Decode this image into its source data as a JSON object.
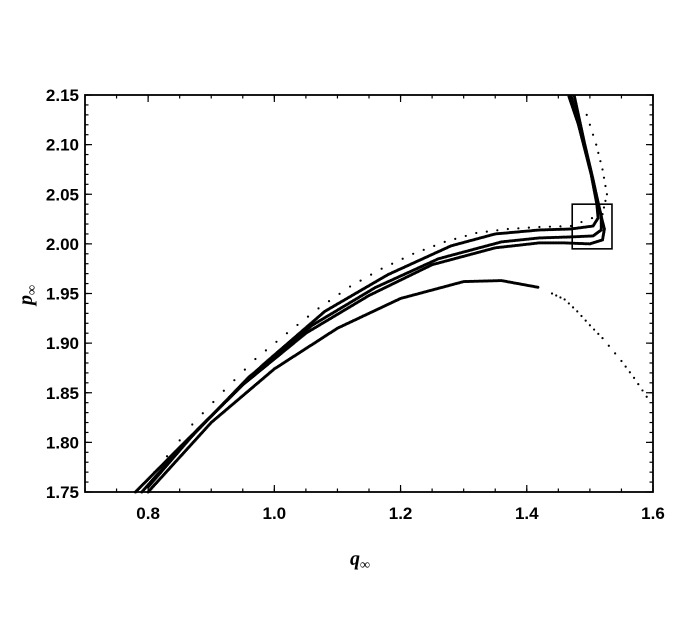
{
  "chart_data": {
    "type": "scatter",
    "title": "",
    "xlabel": {
      "symbol": "q",
      "subscript": "∞"
    },
    "ylabel": {
      "symbol": "p",
      "subscript": "∞"
    },
    "xlim": [
      0.7,
      1.6
    ],
    "ylim": [
      1.75,
      2.15
    ],
    "x_ticks": [
      {
        "value": 0.8,
        "label": "0.8"
      },
      {
        "value": 1.0,
        "label": "1.0"
      },
      {
        "value": 1.2,
        "label": "1.2"
      },
      {
        "value": 1.4,
        "label": "1.4"
      },
      {
        "value": 1.6,
        "label": "1.6"
      }
    ],
    "y_ticks": [
      {
        "value": 1.75,
        "label": "1.75"
      },
      {
        "value": 1.8,
        "label": "1.80"
      },
      {
        "value": 1.85,
        "label": "1.85"
      },
      {
        "value": 1.9,
        "label": "1.90"
      },
      {
        "value": 1.95,
        "label": "1.95"
      },
      {
        "value": 2.0,
        "label": "2.00"
      },
      {
        "value": 2.05,
        "label": "2.05"
      },
      {
        "value": 2.1,
        "label": "2.10"
      },
      {
        "value": 2.15,
        "label": "2.15"
      }
    ],
    "grid": false,
    "legend": "none",
    "marker_color": "#000000",
    "highlight_box": {
      "x": [
        1.472,
        1.535
      ],
      "y": [
        1.995,
        2.04
      ]
    },
    "series": [
      {
        "style": "dense",
        "points": [
          [
            0.78,
            1.75
          ],
          [
            0.85,
            1.795
          ],
          [
            0.95,
            1.858
          ],
          [
            1.05,
            1.91
          ],
          [
            1.15,
            1.948
          ],
          [
            1.25,
            1.979
          ],
          [
            1.35,
            1.996
          ],
          [
            1.42,
            2.001
          ],
          [
            1.46,
            2.001
          ],
          [
            1.5,
            2.0
          ],
          [
            1.52,
            2.004
          ],
          [
            1.523,
            2.015
          ],
          [
            1.515,
            2.035
          ],
          [
            1.505,
            2.065
          ],
          [
            1.492,
            2.1
          ],
          [
            1.475,
            2.15
          ]
        ]
      },
      {
        "style": "dense",
        "points": [
          [
            0.79,
            1.75
          ],
          [
            0.86,
            1.8
          ],
          [
            0.96,
            1.866
          ],
          [
            1.06,
            1.918
          ],
          [
            1.16,
            1.956
          ],
          [
            1.26,
            1.985
          ],
          [
            1.36,
            2.002
          ],
          [
            1.42,
            2.006
          ],
          [
            1.47,
            2.007
          ],
          [
            1.505,
            2.008
          ],
          [
            1.518,
            2.014
          ],
          [
            1.518,
            2.028
          ],
          [
            1.51,
            2.05
          ],
          [
            1.498,
            2.082
          ],
          [
            1.482,
            2.12
          ],
          [
            1.466,
            2.15
          ]
        ]
      },
      {
        "style": "dense",
        "points": [
          [
            0.8,
            1.755
          ],
          [
            0.88,
            1.814
          ],
          [
            0.98,
            1.877
          ],
          [
            1.08,
            1.932
          ],
          [
            1.18,
            1.969
          ],
          [
            1.28,
            1.998
          ],
          [
            1.35,
            2.01
          ],
          [
            1.42,
            2.014
          ],
          [
            1.47,
            2.015
          ],
          [
            1.505,
            2.018
          ],
          [
            1.513,
            2.026
          ],
          [
            1.511,
            2.04
          ],
          [
            1.502,
            2.07
          ],
          [
            1.488,
            2.105
          ],
          [
            1.47,
            2.15
          ]
        ]
      },
      {
        "style": "dense",
        "points": [
          [
            0.8,
            1.75
          ],
          [
            0.9,
            1.82
          ],
          [
            1.0,
            1.874
          ],
          [
            1.1,
            1.915
          ],
          [
            1.2,
            1.945
          ],
          [
            1.3,
            1.962
          ],
          [
            1.36,
            1.963
          ],
          [
            1.42,
            1.956
          ]
        ]
      },
      {
        "style": "sparse",
        "points": [
          [
            0.81,
            1.77
          ],
          [
            0.87,
            1.818
          ],
          [
            0.92,
            1.852
          ],
          [
            0.97,
            1.884
          ],
          [
            1.02,
            1.91
          ],
          [
            1.07,
            1.935
          ],
          [
            1.12,
            1.957
          ],
          [
            1.17,
            1.975
          ],
          [
            1.22,
            1.99
          ],
          [
            1.27,
            2.002
          ],
          [
            1.32,
            2.011
          ],
          [
            1.37,
            2.015
          ],
          [
            1.42,
            2.017
          ],
          [
            1.47,
            2.018
          ],
          [
            1.52,
            2.03
          ],
          [
            1.527,
            2.05
          ],
          [
            1.52,
            2.075
          ],
          [
            1.51,
            2.1
          ],
          [
            1.495,
            2.13
          ]
        ]
      },
      {
        "style": "sparse",
        "points": [
          [
            1.44,
            1.95
          ],
          [
            1.46,
            1.944
          ],
          [
            1.48,
            1.932
          ],
          [
            1.5,
            1.918
          ],
          [
            1.52,
            1.905
          ],
          [
            1.55,
            1.882
          ],
          [
            1.57,
            1.865
          ],
          [
            1.59,
            1.846
          ]
        ]
      }
    ]
  }
}
